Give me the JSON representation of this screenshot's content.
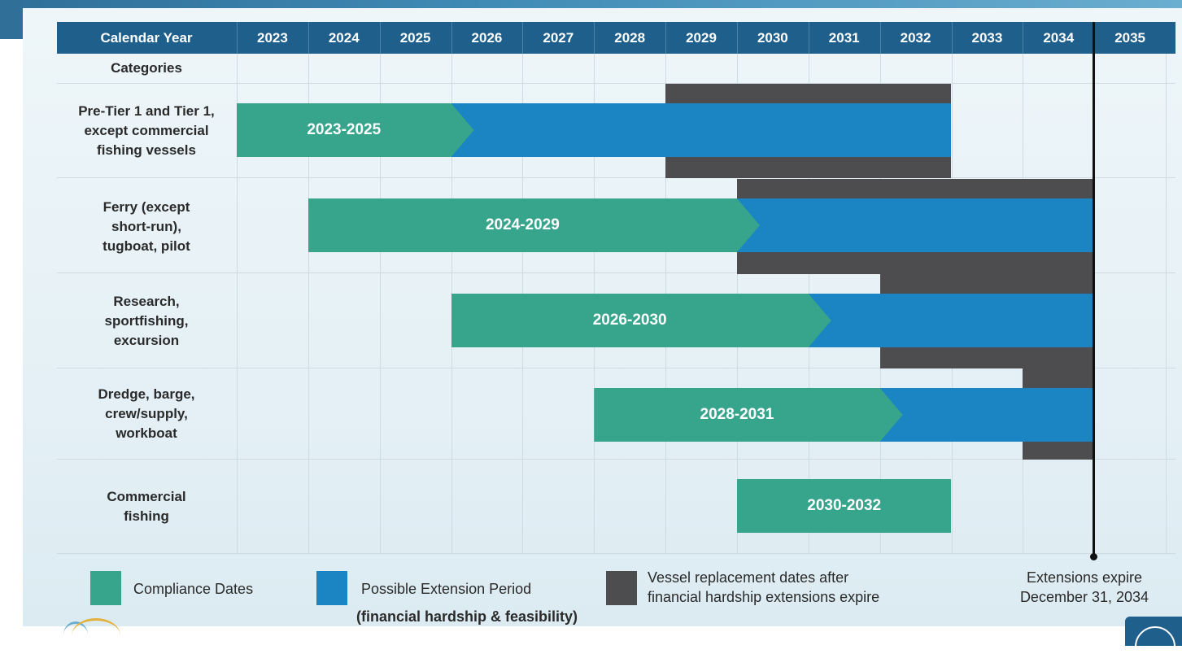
{
  "chart_data": {
    "type": "gantt",
    "header_label": "Calendar Year",
    "category_header": "Categories",
    "years": [
      "2023",
      "2024",
      "2025",
      "2026",
      "2027",
      "2028",
      "2029",
      "2030",
      "2031",
      "2032",
      "2033",
      "2034",
      "2035"
    ],
    "rows": [
      {
        "category": "Pre-Tier 1 and Tier 1,\nexcept commercial\nfishing vessels",
        "compliance": {
          "label": "2023-2025",
          "start": 2023,
          "end": 2026,
          "arrow": true
        },
        "extension": {
          "start": 2026,
          "end": 2033
        },
        "replacement": {
          "start": 2029,
          "end": 2033
        }
      },
      {
        "category": "Ferry (except\nshort-run),\ntugboat, pilot",
        "compliance": {
          "label": "2024-2029",
          "start": 2024,
          "end": 2030,
          "arrow": true
        },
        "extension": {
          "start": 2030,
          "end": 2035
        },
        "replacement": {
          "start": 2030,
          "end": 2035
        }
      },
      {
        "category": "Research,\nsportfishing,\nexcursion",
        "compliance": {
          "label": "2026-2030",
          "start": 2026,
          "end": 2031,
          "arrow": true
        },
        "extension": {
          "start": 2031,
          "end": 2035
        },
        "replacement": {
          "start": 2032,
          "end": 2035
        }
      },
      {
        "category": "Dredge, barge,\ncrew/supply,\nworkboat",
        "compliance": {
          "label": "2028-2031",
          "start": 2028,
          "end": 2032,
          "arrow": true
        },
        "extension": {
          "start": 2032,
          "end": 2035
        },
        "replacement": {
          "start": 2034,
          "end": 2035
        }
      },
      {
        "category": "Commercial\nfishing",
        "compliance": {
          "label": "2030-2032",
          "start": 2030,
          "end": 2033,
          "arrow": false
        },
        "extension": null,
        "replacement": null
      }
    ],
    "legend": [
      {
        "label": "Compliance Dates",
        "color": "#37a58c"
      },
      {
        "label": "Possible Extension Period",
        "sublabel": "(financial hardship & feasibility)",
        "color": "#1b84c3"
      },
      {
        "label": "Vessel replacement dates after\nfinancial hardship extensions expire",
        "color": "#4d4d4f"
      }
    ],
    "marker": {
      "label": "Extensions expire\nDecember 31, 2034",
      "year_end": 2035
    }
  },
  "colors": {
    "header": "#1f5f8c",
    "compliance": "#37a58c",
    "extension": "#1b84c3",
    "replacement": "#4d4d4f"
  }
}
